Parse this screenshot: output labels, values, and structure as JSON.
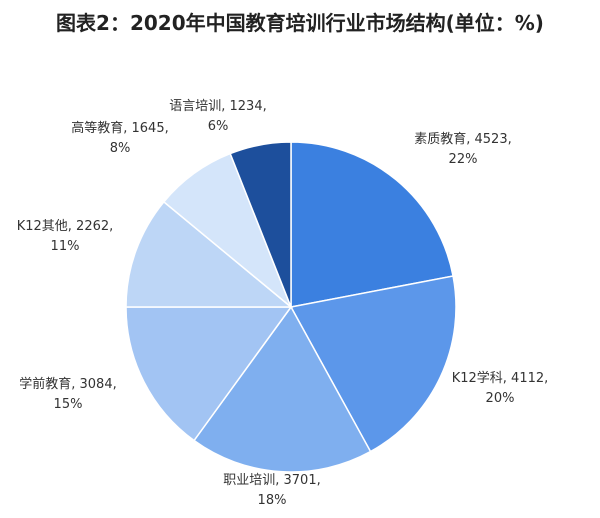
{
  "chart_data": {
    "type": "pie",
    "title": "图表2：2020年中国教育培训行业市场结构(单位：%)",
    "categories": [
      "素质教育",
      "K12学科",
      "职业培训",
      "学前教育",
      "K12其他",
      "高等教育",
      "语言培训"
    ],
    "values": [
      4523,
      4112,
      3701,
      3084,
      2262,
      1645,
      1234
    ],
    "value_labels": [
      "素质教育, 4523,",
      "K12学科, 4112,",
      "职业培训, 3701,",
      "学前教育, 3084,",
      "K12其他, 2262,",
      "高等教育, 1645,",
      "语言培训, 1234,"
    ],
    "percents": [
      22,
      20,
      18,
      15,
      11,
      8,
      6
    ],
    "percent_labels": [
      "22%",
      "20%",
      "18%",
      "15%",
      "11%",
      "8%",
      "6%"
    ],
    "colors": [
      "#3b80e0",
      "#5c97ea",
      "#7fafef",
      "#a2c4f3",
      "#bdd6f6",
      "#d4e5fa",
      "#1d4f9c"
    ]
  }
}
